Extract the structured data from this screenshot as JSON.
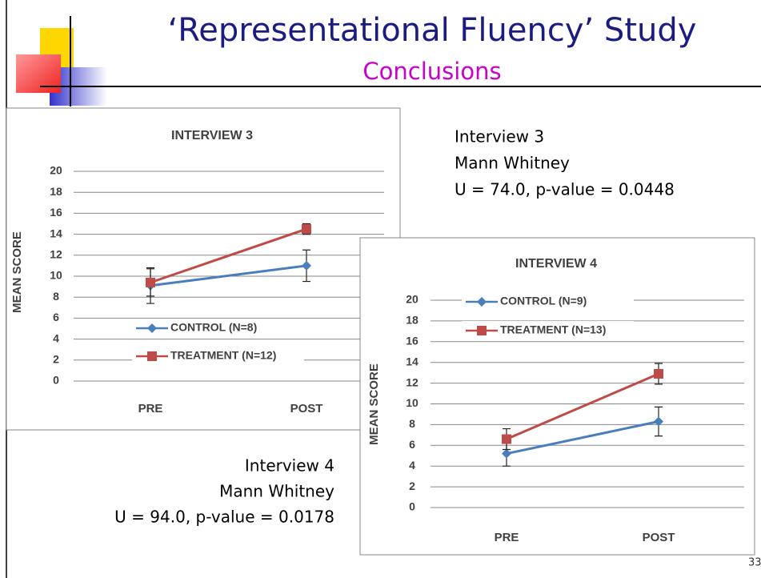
{
  "slide": {
    "title": "‘Representational Fluency’ Study",
    "subtitle": "Conclusions",
    "note_1": [
      "Interview 3",
      "Mann Whitney",
      "U = 74.0,  p-value = 0.0448"
    ],
    "note_2": [
      "Interview 4",
      "Mann Whitney",
      "U = 94.0,  p-value = 0.0178"
    ],
    "page_number": "33"
  },
  "chart_data": [
    {
      "type": "line",
      "title": "INTERVIEW 3",
      "y_label": "MEAN SCORE",
      "categories": [
        "PRE",
        "POST"
      ],
      "ylim": [
        0,
        20
      ],
      "yticks": [
        0,
        2,
        4,
        6,
        8,
        10,
        12,
        14,
        16,
        18,
        20
      ],
      "grid": true,
      "series": [
        {
          "name": "CONTROL (N=8)",
          "color": "#4a7ebb",
          "marker": "diamond",
          "values": [
            9.1,
            11.0
          ],
          "errors": [
            1.7,
            1.5
          ]
        },
        {
          "name": "TREATMENT (N=12)",
          "color": "#be4b48",
          "marker": "square",
          "values": [
            9.4,
            14.5
          ],
          "errors": [
            1.3,
            0.5
          ]
        }
      ]
    },
    {
      "type": "line",
      "title": "INTERVIEW 4",
      "y_label": "MEAN SCORE",
      "categories": [
        "PRE",
        "POST"
      ],
      "ylim": [
        0,
        20
      ],
      "yticks": [
        0,
        2,
        4,
        6,
        8,
        10,
        12,
        14,
        16,
        18,
        20
      ],
      "grid": true,
      "series": [
        {
          "name": "CONTROL (N=9)",
          "color": "#4a7ebb",
          "marker": "diamond",
          "values": [
            5.2,
            8.3
          ],
          "errors": [
            1.2,
            1.4
          ]
        },
        {
          "name": "TREATMENT (N=13)",
          "color": "#be4b48",
          "marker": "square",
          "values": [
            6.6,
            12.9
          ],
          "errors": [
            1.0,
            1.0
          ]
        }
      ]
    }
  ]
}
